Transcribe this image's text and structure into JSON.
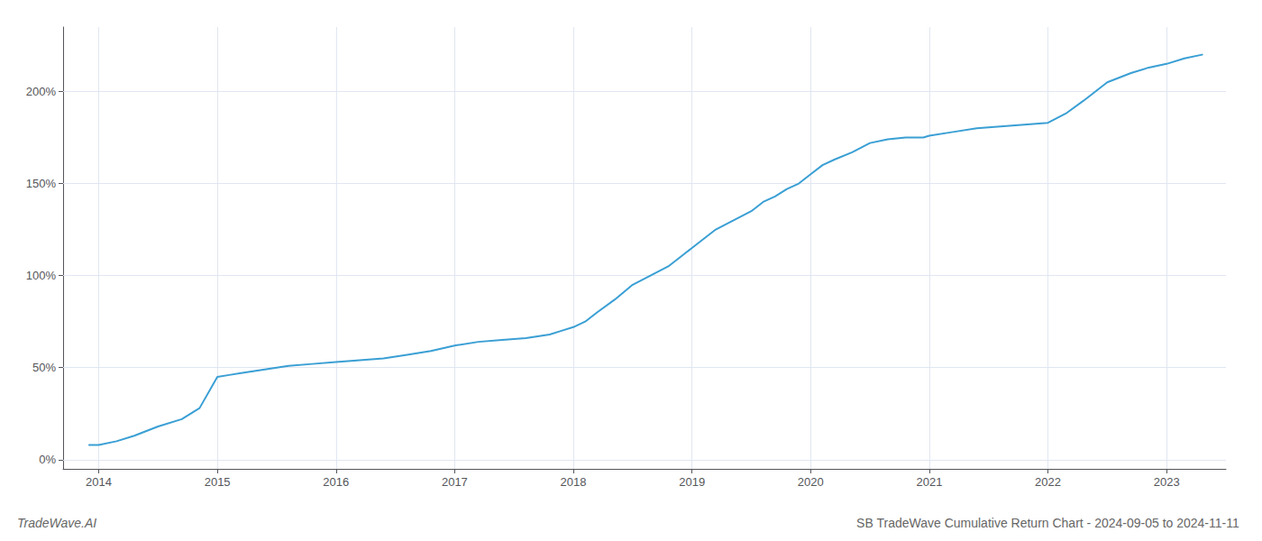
{
  "chart_data": {
    "type": "line",
    "title": "SB TradeWave Cumulative Return Chart - 2024-09-05 to 2024-11-11",
    "annotations": [
      "TradeWave.AI"
    ],
    "color": "#3a9fd4",
    "grid": true,
    "x": [
      2013.92,
      2014.0,
      2014.15,
      2014.3,
      2014.5,
      2014.7,
      2014.85,
      2015.0,
      2015.1,
      2015.2,
      2015.4,
      2015.6,
      2015.8,
      2016.0,
      2016.2,
      2016.4,
      2016.6,
      2016.8,
      2017.0,
      2017.2,
      2017.4,
      2017.6,
      2017.7,
      2017.8,
      2017.9,
      2018.0,
      2018.1,
      2018.2,
      2018.35,
      2018.5,
      2018.65,
      2018.8,
      2018.9,
      2019.0,
      2019.1,
      2019.2,
      2019.35,
      2019.5,
      2019.6,
      2019.7,
      2019.8,
      2019.9,
      2020.0,
      2020.1,
      2020.2,
      2020.35,
      2020.5,
      2020.65,
      2020.8,
      2020.95,
      2021.0,
      2021.2,
      2021.4,
      2021.6,
      2021.8,
      2022.0,
      2022.15,
      2022.3,
      2022.5,
      2022.7,
      2022.85,
      2023.0,
      2023.15,
      2023.3
    ],
    "values": [
      8,
      8,
      10,
      13,
      18,
      22,
      28,
      45,
      46,
      47,
      49,
      51,
      52,
      53,
      54,
      55,
      57,
      59,
      62,
      64,
      65,
      66,
      67,
      68,
      70,
      72,
      75,
      80,
      87,
      95,
      100,
      105,
      110,
      115,
      120,
      125,
      130,
      135,
      140,
      143,
      147,
      150,
      155,
      160,
      163,
      167,
      172,
      174,
      175,
      175,
      176,
      178,
      180,
      181,
      182,
      183,
      188,
      195,
      205,
      210,
      213,
      215,
      218,
      220
    ],
    "xlim": [
      2013.7,
      2023.5
    ],
    "xticks": [
      2014,
      2015,
      2016,
      2017,
      2018,
      2019,
      2020,
      2021,
      2022,
      2023
    ],
    "ylim": [
      -5,
      235
    ],
    "yticks": [
      {
        "value": 0,
        "label": "0%"
      },
      {
        "value": 50,
        "label": "50%"
      },
      {
        "value": 100,
        "label": "100%"
      },
      {
        "value": 150,
        "label": "150%"
      },
      {
        "value": 200,
        "label": "200%"
      }
    ]
  }
}
